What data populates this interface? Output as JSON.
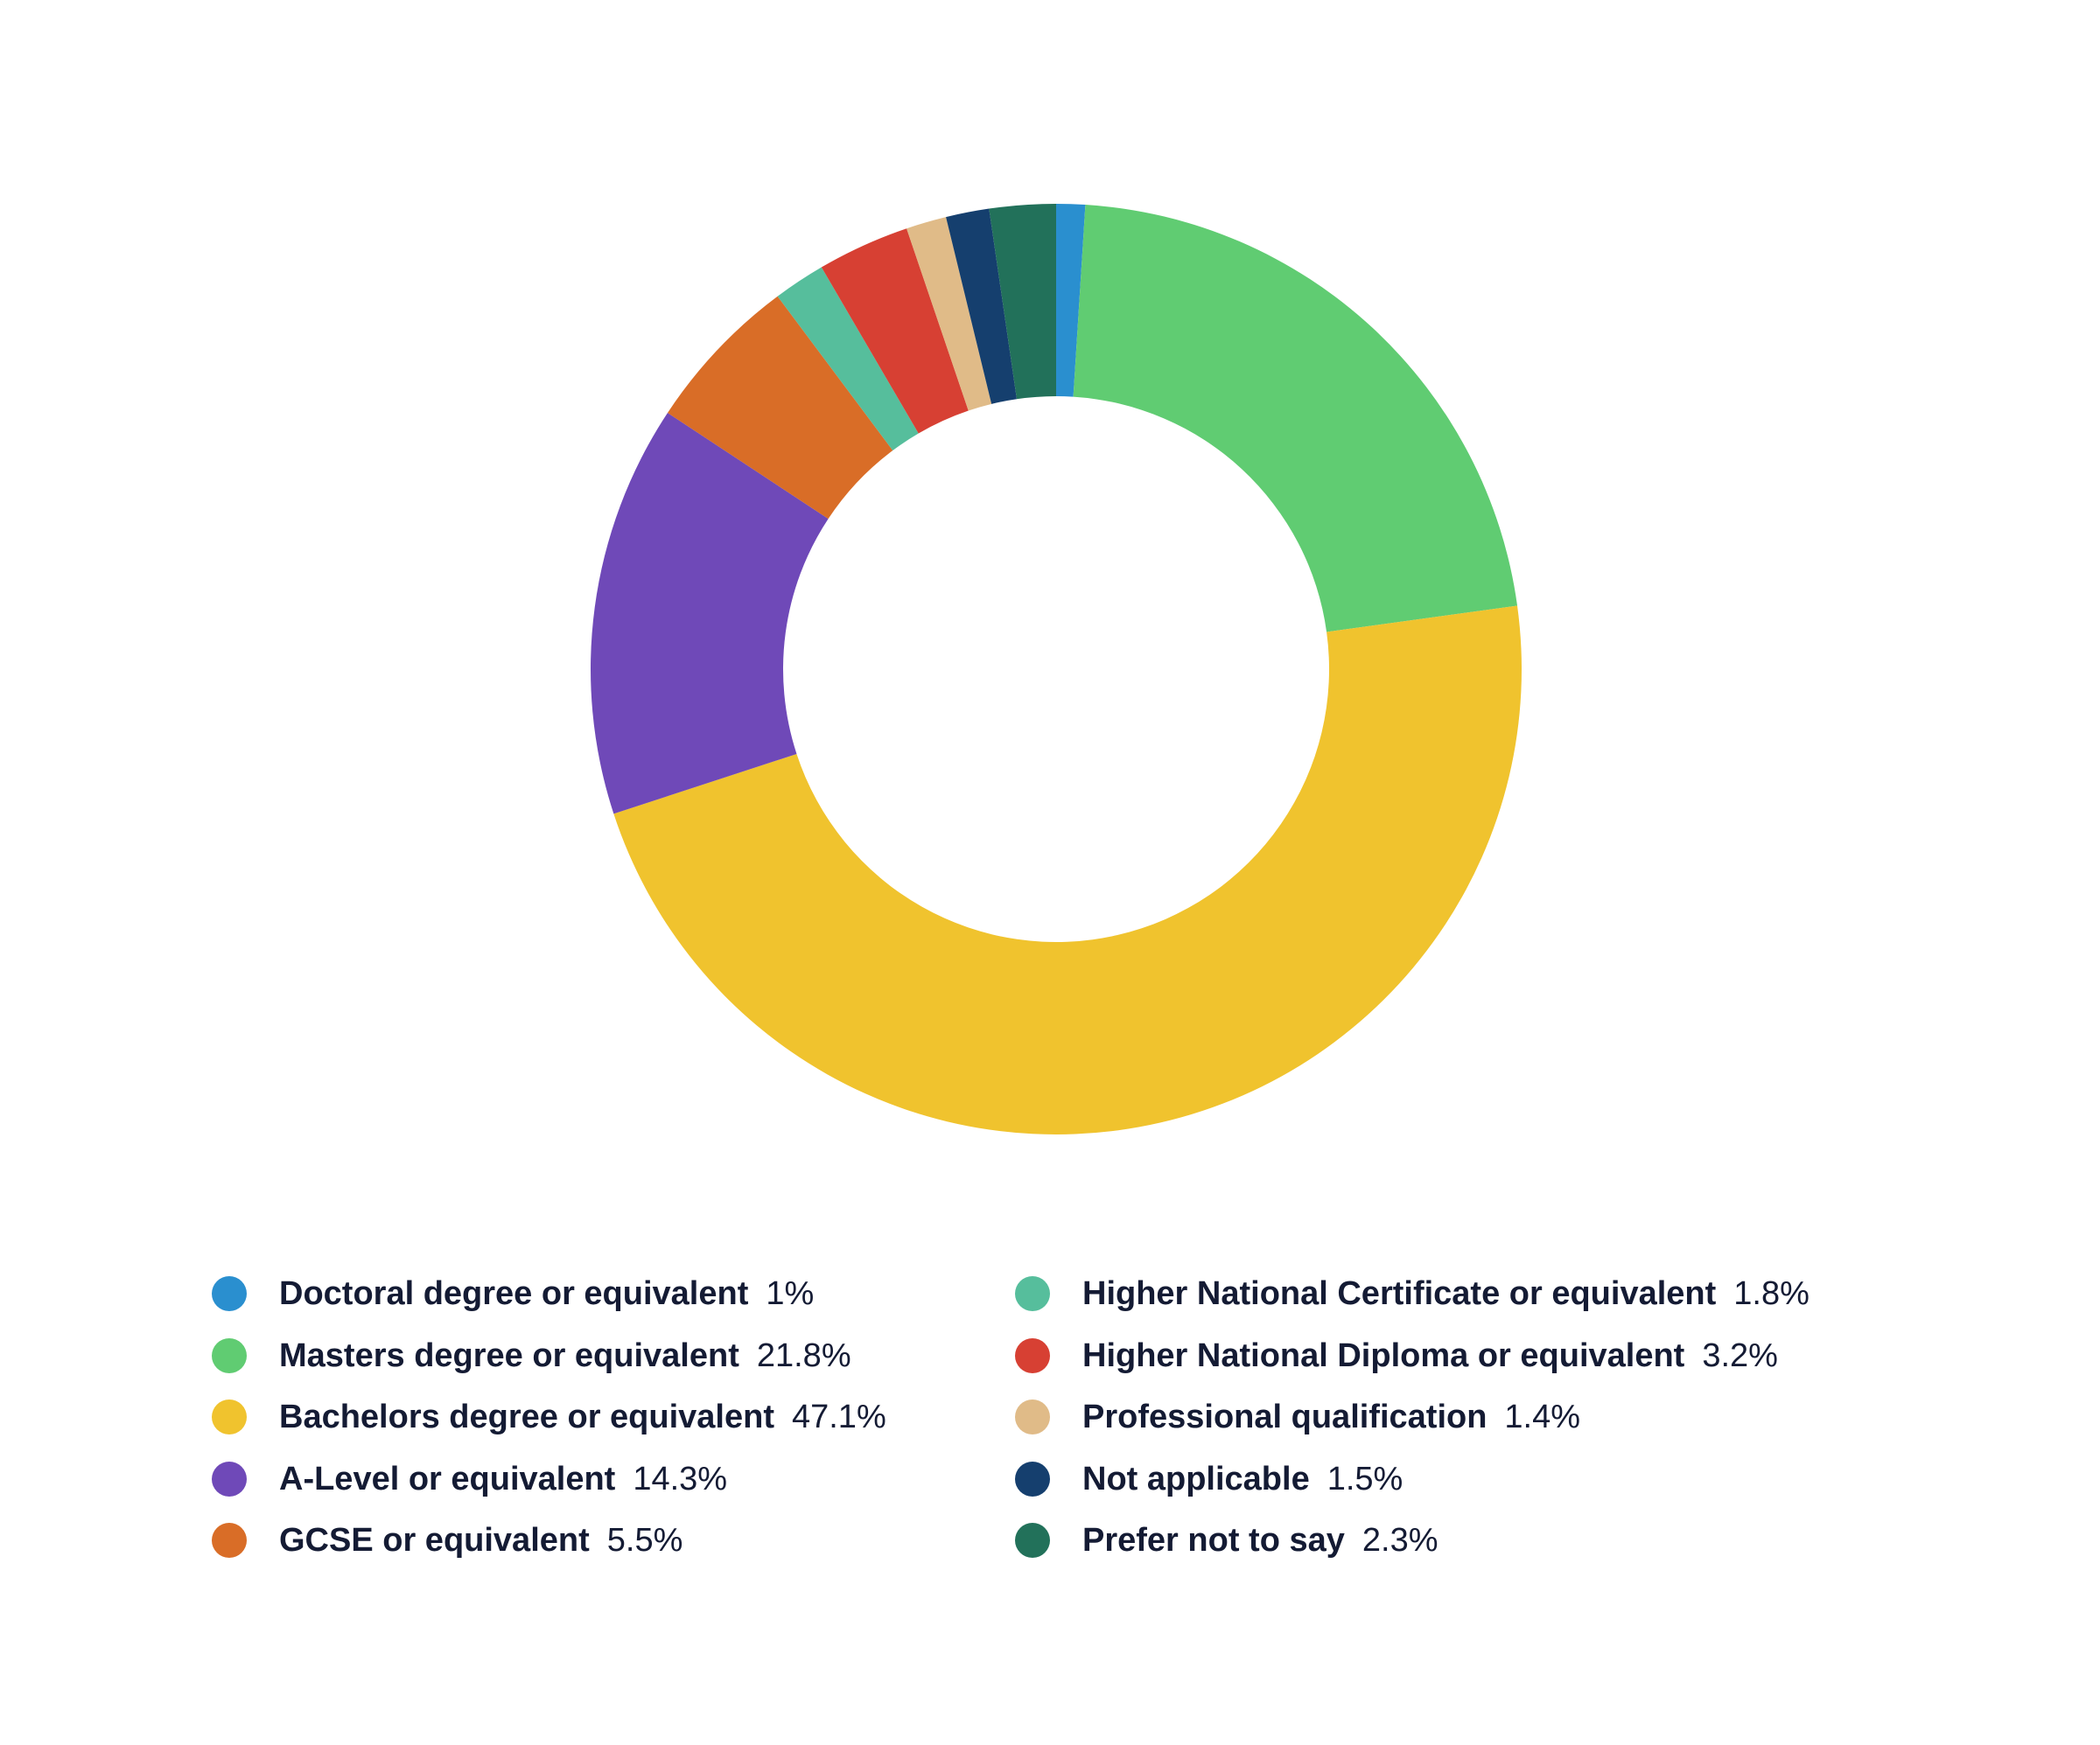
{
  "chart_data": {
    "type": "pie",
    "variant": "donut",
    "title": "",
    "legend_placement": "bottom",
    "unit": "%",
    "slices": [
      {
        "label": "Doctoral degree or equivalent",
        "value": 1,
        "display": "1%",
        "color": "#2a8fcf"
      },
      {
        "label": "Masters degree or equivalent",
        "value": 21.8,
        "display": "21.8%",
        "color": "#60cc72"
      },
      {
        "label": "Bachelors degree or equivalent",
        "value": 47.1,
        "display": "47.1%",
        "color": "#f0c32e"
      },
      {
        "label": "A-Level or equivalent",
        "value": 14.3,
        "display": "14.3%",
        "color": "#6f49b8"
      },
      {
        "label": "GCSE or equivalent",
        "value": 5.5,
        "display": "5.5%",
        "color": "#d96d27"
      },
      {
        "label": "Higher National Certificate or equivalent",
        "value": 1.8,
        "display": "1.8%",
        "color": "#56be9c"
      },
      {
        "label": "Higher National Diploma or equivalent",
        "value": 3.2,
        "display": "3.2%",
        "color": "#d74033"
      },
      {
        "label": "Professional qualification",
        "value": 1.4,
        "display": "1.4%",
        "color": "#e0bb88"
      },
      {
        "label": "Not applicable",
        "value": 1.5,
        "display": "1.5%",
        "color": "#153f6e"
      },
      {
        "label": "Prefer not to say",
        "value": 2.3,
        "display": "2.3%",
        "color": "#22715a"
      }
    ]
  }
}
